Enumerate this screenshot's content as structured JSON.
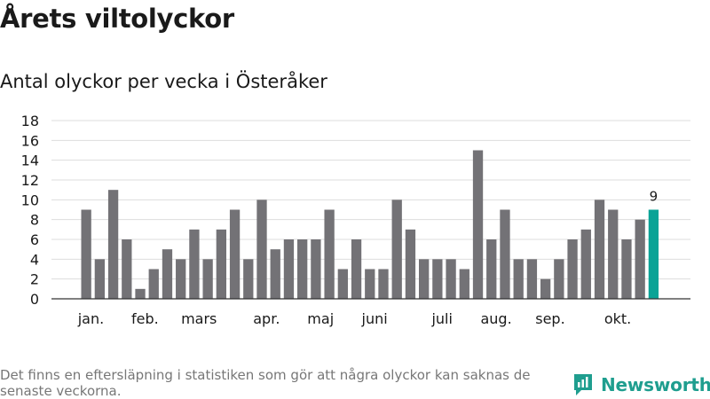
{
  "header": {
    "title": "Årets viltolyckor",
    "subtitle": "Antal olyckor per vecka i Österåker"
  },
  "footer": {
    "note": "Det finns en eftersläpning i statistiken som gör att några olyckor kan saknas de senaste veckorna.",
    "brand": "Newsworthy"
  },
  "colors": {
    "bar": "#737276",
    "highlight": "#0aa396",
    "grid": "#dddddd",
    "brand": "#1f9e8f"
  },
  "chart_data": {
    "type": "bar",
    "title": "Antal olyckor per vecka i Österåker",
    "xlabel": "",
    "ylabel": "",
    "ylim": [
      0,
      18
    ],
    "yticks": [
      0,
      2,
      4,
      6,
      8,
      10,
      12,
      14,
      16,
      18
    ],
    "grid": true,
    "values": [
      9,
      4,
      11,
      6,
      1,
      3,
      5,
      4,
      7,
      4,
      7,
      9,
      4,
      10,
      5,
      6,
      6,
      6,
      9,
      3,
      6,
      3,
      3,
      10,
      7,
      4,
      4,
      4,
      3,
      15,
      6,
      9,
      4,
      4,
      2,
      4,
      6,
      7,
      10,
      9,
      6,
      8,
      9
    ],
    "month_labels": [
      {
        "label": "jan.",
        "index": 0.35
      },
      {
        "label": "feb.",
        "index": 4.35
      },
      {
        "label": "mars",
        "index": 8.35
      },
      {
        "label": "apr.",
        "index": 13.35
      },
      {
        "label": "maj",
        "index": 17.35
      },
      {
        "label": "juni",
        "index": 21.35
      },
      {
        "label": "juli",
        "index": 26.35
      },
      {
        "label": "aug.",
        "index": 30.35
      },
      {
        "label": "sep.",
        "index": 34.35
      },
      {
        "label": "okt.",
        "index": 39.35
      }
    ],
    "highlight_index": 42,
    "annotation": {
      "index": 42,
      "text": "9"
    }
  }
}
